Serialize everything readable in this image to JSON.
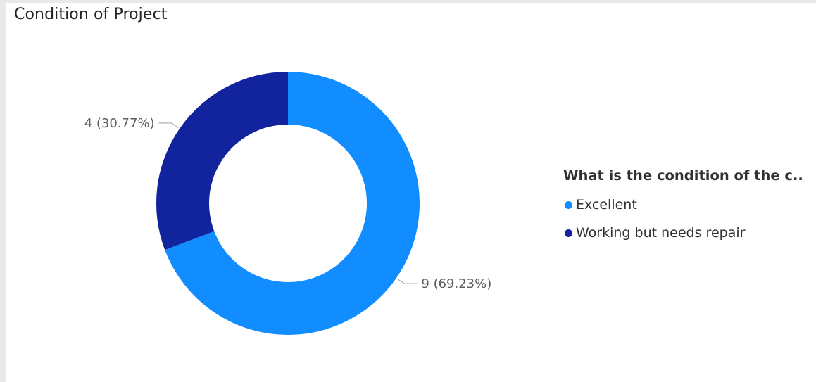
{
  "visual": {
    "title": "Condition of Project"
  },
  "legend": {
    "title": "What is the condition of the c..",
    "items": [
      {
        "label": "Excellent",
        "color": "#118dff"
      },
      {
        "label": "Working but needs repair",
        "color": "#12239e"
      }
    ]
  },
  "chart_data": {
    "type": "pie",
    "variant": "donut",
    "title": "Condition of Project",
    "legend_title": "What is the condition of the c..",
    "legend_position": "right",
    "categories": [
      "Excellent",
      "Working but needs repair"
    ],
    "values": [
      9,
      4
    ],
    "colors": [
      "#118dff",
      "#12239e"
    ],
    "data_labels": [
      "9 (69.23%)",
      "4 (30.77%)"
    ]
  }
}
